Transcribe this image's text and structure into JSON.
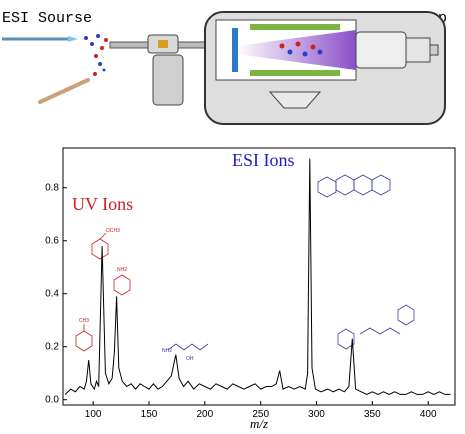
{
  "diagram": {
    "source_label": "ESI Sourse",
    "lamp_label": "UV Lamp"
  },
  "structure_labels": [
    "CH3",
    "OCH3",
    "NH2",
    "OH",
    "NH2"
  ],
  "chart_data": {
    "type": "line",
    "x_label": "m/z",
    "annotations": [
      {
        "text": "UV Ions",
        "color": "#d42020"
      },
      {
        "text": "ESI Ions",
        "color": "#2020c0"
      }
    ],
    "x": [
      75,
      80,
      84,
      88,
      92,
      94,
      96,
      98,
      101,
      103,
      105,
      108,
      111,
      114,
      117,
      119,
      121,
      123,
      126,
      130,
      134,
      138,
      142,
      146,
      150,
      154,
      158,
      162,
      166,
      170,
      174,
      177,
      181,
      185,
      190,
      195,
      200,
      205,
      210,
      215,
      220,
      225,
      230,
      235,
      240,
      245,
      250,
      255,
      260,
      264,
      267,
      270,
      275,
      280,
      285,
      290,
      292,
      294,
      296,
      299,
      304,
      310,
      315,
      320,
      325,
      329,
      332,
      335,
      340,
      345,
      350,
      355,
      360,
      365,
      370,
      375,
      380,
      385,
      390,
      395,
      400,
      405,
      410,
      415,
      420
    ],
    "series": [
      {
        "color": "#000000",
        "values": [
          0.02,
          0.04,
          0.03,
          0.05,
          0.04,
          0.07,
          0.15,
          0.06,
          0.04,
          0.07,
          0.05,
          0.58,
          0.1,
          0.06,
          0.08,
          0.18,
          0.39,
          0.12,
          0.07,
          0.05,
          0.06,
          0.04,
          0.06,
          0.05,
          0.04,
          0.06,
          0.04,
          0.05,
          0.07,
          0.09,
          0.17,
          0.08,
          0.05,
          0.07,
          0.04,
          0.06,
          0.05,
          0.04,
          0.06,
          0.05,
          0.04,
          0.06,
          0.05,
          0.04,
          0.05,
          0.06,
          0.04,
          0.05,
          0.05,
          0.06,
          0.11,
          0.04,
          0.05,
          0.04,
          0.05,
          0.04,
          0.1,
          0.91,
          0.12,
          0.04,
          0.03,
          0.04,
          0.03,
          0.04,
          0.03,
          0.05,
          0.23,
          0.04,
          0.03,
          0.02,
          0.03,
          0.02,
          0.03,
          0.02,
          0.03,
          0.02,
          0.02,
          0.03,
          0.02,
          0.02,
          0.03,
          0.02,
          0.03,
          0.02,
          0.02
        ]
      }
    ],
    "xlim": [
      73,
      424
    ],
    "ylim": [
      -0.02,
      0.95
    ],
    "xticks": [
      100,
      150,
      200,
      250,
      300,
      350,
      400
    ],
    "yticks": [
      {
        "value": 0,
        "label": "0.0"
      },
      0.2,
      0.4,
      0.6,
      0.8
    ]
  }
}
